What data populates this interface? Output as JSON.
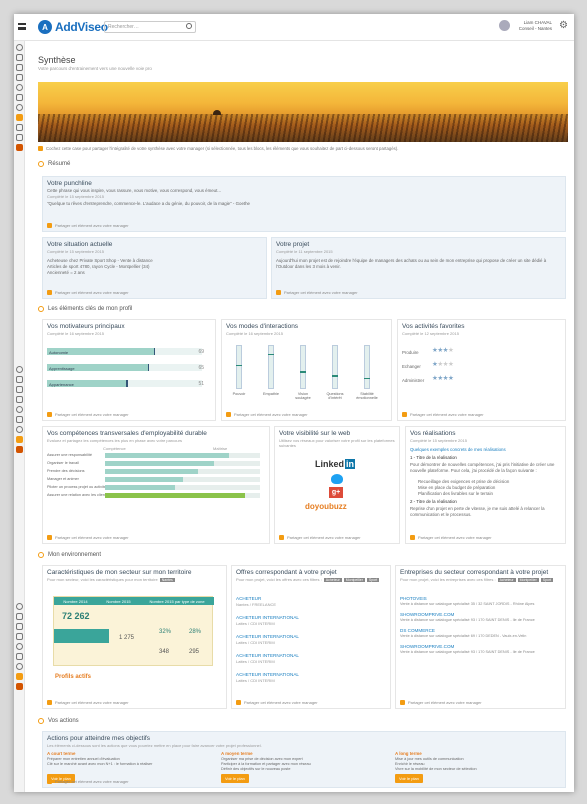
{
  "header": {
    "logo_mark": "A",
    "logo_text": "AddViseo",
    "search_placeholder": "Rechercher…",
    "user_line1": "Liam CHAVAL",
    "user_line2": "Conseil - Nantes"
  },
  "page": {
    "title": "Synthèse",
    "subtitle": "Votre parcours d'entrainement vers une nouvelle voie pro"
  },
  "banner_note": "Cochez cette case pour partager l'intégralité de votre synthèse avec votre manager (si sélectionnée, tous les blocs, les éléments que vous souhaitez de part ci-dessous seront partagés).",
  "share_label": "Partager cet élément avec votre manager",
  "sections": {
    "resume": "Résumé",
    "profil": "Les éléments clés de mon profil",
    "environnement": "Mon environnement",
    "actions": "Vos actions"
  },
  "punchline": {
    "title": "Votre punchline",
    "line1": "Cette phrase qui vous inspire, vous rassure, vous motive, vous correspond, vous émeut...",
    "date": "Complété le 15 septembre 2015",
    "quote": "\"Quelque tu rêves d'entreprendre, commence-le. L'audace a du génie, du pouvoir, de la magie\" - Goethe"
  },
  "situation": {
    "title": "Votre situation actuelle",
    "date": "Complété le 15 septembre 2015",
    "line1": "Acheteuse chez Private Sport Shop - Vente à distance",
    "line2": "Articles de sport 4780, rayon Cycle - Montpellier (34)",
    "line3": "Ancienneté = 2 ans"
  },
  "projet": {
    "title": "Votre projet",
    "date": "Complété le 11 septembre 2015",
    "text": "Aujourd'hui mon projet est de rejoindre l'équipe de managers des achats ou au sein de mon entreprise qui propose de créer un site dédié à l'Outdoor dans les 3 mois à venir."
  },
  "moteurs": {
    "title": "Vos motivateurs principaux",
    "date": "Complété le 16 septembre 2015",
    "rows": [
      {
        "label": "Autonomie",
        "value": "69",
        "pct": 0.69
      },
      {
        "label": "Apprentissage",
        "value": "65",
        "pct": 0.65
      },
      {
        "label": "Appartenance",
        "value": "51",
        "pct": 0.51
      }
    ]
  },
  "modes": {
    "title": "Vos modes d'interactions",
    "date": "Complété le 16 septembre 2015",
    "bars": [
      {
        "label": "Pouvoir",
        "level": 0.55
      },
      {
        "label": "Empathie",
        "level": 0.82
      },
      {
        "label": "Vision soulagée",
        "level": 0.4
      },
      {
        "label": "Questions d'intérêt",
        "level": 0.3
      },
      {
        "label": "Stabilité émotionnelle",
        "level": 0.25
      }
    ]
  },
  "activites": {
    "title": "Vos activités favorites",
    "date": "Complété le 12 septembre 2015",
    "rows": [
      {
        "label": "Produire",
        "stars": 3
      },
      {
        "label": "Echanger",
        "stars": 1
      },
      {
        "label": "Administrer",
        "stars": 4
      }
    ]
  },
  "competences": {
    "title": "Vos compétences transversales d'employabilité durable",
    "subtitle": "Evaluez et partagez les compétences les plus en phase avec votre parcours",
    "legend_left": "Compétence",
    "legend_right": "Maîtrise",
    "rows": [
      {
        "label": "Assurer une responsabilité",
        "pct": 0.8
      },
      {
        "label": "Organiser le travail",
        "pct": 0.7
      },
      {
        "label": "Prendre des décisions",
        "pct": 0.6
      },
      {
        "label": "Manager et animer",
        "pct": 0.5
      },
      {
        "label": "Piloter un process projet ou activité",
        "pct": 0.45
      },
      {
        "label": "Assurer une relation avec les clients",
        "pct": 0.9
      }
    ]
  },
  "visibilite": {
    "title": "Votre visibilité sur le web",
    "subtitle": "Utilisez vos réseaux pour valoriser votre profil sur les plateformes suivantes",
    "linkedin": "Linked",
    "linkedin_in": "in",
    "google": "g+",
    "doyoubuzz": "doyoubuzz"
  },
  "realisations": {
    "title": "Vos réalisations",
    "date": "Complété le 15 septembre 2015",
    "link": "Quelques exemples concrets de mes réalisations",
    "item1": "1 - Titre de la réalisation",
    "desc1": "Pour démontrer de nouvelles compétences, j'ai pris l'initiative de créer une nouvelle plateforme. Pour cela, j'ai procédé de la façon suivante :",
    "b1": "Recueillage des exigences et prise de décision",
    "b2": "Mise en place du budget de préparation",
    "b3": "Planification des livrables sur le terrain",
    "item2": "2 - Titre de la réalisation",
    "desc2": "Reprise d'un projet en perte de vitesse, je me suis attelé à relancer la communication et le processus."
  },
  "secteur": {
    "title": "Caractéristiques de mon secteur sur mon territoire",
    "subtitle": "Pour mon secteur, voici les caractéristiques pour mon territoire",
    "tag": "Nantes",
    "h1": "Nombre 2014",
    "h2": "Nombre 2015",
    "h3": "Nombre 2015 par type de zone",
    "big": "72 262",
    "n1": "1 275",
    "p1": "32%",
    "p2": "28%",
    "n2": "348",
    "n3": "295",
    "label": "Profils actifs"
  },
  "offres": {
    "title": "Offres correspondant à votre projet",
    "subtitle": "Pour mon projet, voici les offres avec ces filtres :",
    "tags": [
      "Acheteur",
      "Montpellier",
      "Sport"
    ],
    "items": [
      {
        "title": "ACHETEUR",
        "sub": "Nantes / FREELANCE"
      },
      {
        "title": "ACHETEUR INTERNATIONAL",
        "sub": "Lattes / CDI INTERIM"
      },
      {
        "title": "ACHETEUR INTERNATIONAL",
        "sub": "Lattes / CDI INTERIM"
      },
      {
        "title": "ACHETEUR INTERNATIONAL",
        "sub": "Lattes / CDI INTERIM"
      },
      {
        "title": "ACHETEUR INTERNATIONAL",
        "sub": "Lattes / CDI INTERIM"
      }
    ]
  },
  "entreprises": {
    "title": "Entreprises du secteur correspondant à votre projet",
    "subtitle": "Pour mon projet, voici les entreprises avec ces filtres :",
    "tags": [
      "Acheteur",
      "Montpellier",
      "Sport"
    ],
    "items": [
      {
        "title": "PHOTOVEIS",
        "sub": "Vente à distance sur catalogue spécialisé 35 / 32 SAINT JORDIS - Rhône Alpes"
      },
      {
        "title": "SHOWROOMPRIVE.COM",
        "sub": "Vente à distance sur catalogue spécialisé 93 / 170 SAINT DENIS - Ile de France"
      },
      {
        "title": "DS COMMERCE",
        "sub": "Vente à distance sur catalogue spécialisé 69 / 170 DEDEN - Vaulx-en-Velin"
      },
      {
        "title": "SHOWROOMPRIVE.COM",
        "sub": "Vente à distance sur catalogue spécialisé 93 / 170 SAINT DENIS - Ile de France"
      }
    ]
  },
  "actions": {
    "title": "Actions pour atteindre mes objectifs",
    "subtitle": "Les éléments ci-dessous sont les actions que vous pourriez mettre en place pour faire avancer votre projet professionnel.",
    "cols": [
      {
        "title": "A court terme",
        "l1": "Préparer mon entretien annuel d'évaluation",
        "l2": "Clé sur le marché avant avec mon N+1 : le formation à réaliser",
        "btn": "Voir le plan"
      },
      {
        "title": "A moyen terme",
        "l1": "Organiser ma prise de décision avec mon expert",
        "l2": "Participer à la formation et partager avec mon réseau",
        "l3": "Définir des objectifs sur le nouveau poste",
        "btn": "Voir le plan"
      },
      {
        "title": "A long terme",
        "l1": "Mise à jour mes outils de communication",
        "l2": "Enrichir le réseau",
        "l3": "Vivre sur la mobilité de mon secteur de sélection",
        "btn": "Voir le plan"
      }
    ]
  }
}
